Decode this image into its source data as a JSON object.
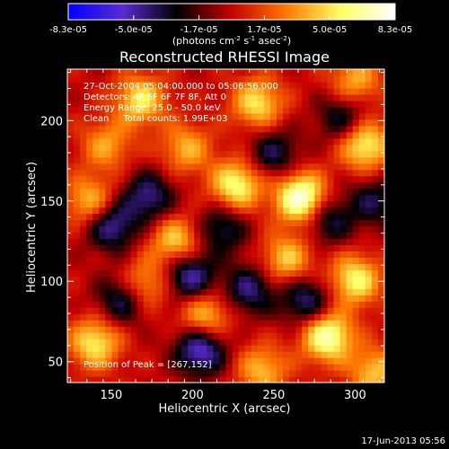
{
  "chart_data": {
    "type": "heatmap",
    "title": "Reconstructed RHESSI Image",
    "xlabel": "Heliocentric X (arcsec)",
    "ylabel": "Heliocentric Y (arcsec)",
    "xlim": [
      123,
      318
    ],
    "ylim": [
      37,
      232
    ],
    "x_ticks": [
      150,
      200,
      250,
      300
    ],
    "y_ticks": [
      50,
      100,
      150,
      200
    ],
    "colorbar": {
      "min": -8.3e-05,
      "max": 8.3e-05,
      "tick_labels": [
        "-8.3e-05",
        "-5.0e-05",
        "-1.7e-05",
        "1.7e-05",
        "5.0e-05",
        "8.3e-05"
      ],
      "unit_label": "(photons cm-2 s-1 asec-2)",
      "colors": [
        "#0000ff",
        "#5a2ad2",
        "#000000",
        "#c80000",
        "#ff7800",
        "#ffff64",
        "#ffffff"
      ]
    },
    "annotations": [
      "27-Oct-2004 05:04:00.000 to 05:06:56.000",
      "Detectors: 4F 5F 6F 7F 8F, Att 0",
      "Energy Range: 25.0 - 50.0 keV",
      "Clean     Total counts: 1.99E+03"
    ],
    "peak_label": "Position of Peak = [267,152]",
    "peak": {
      "x": 267,
      "y": 152
    },
    "hot_spots": [
      {
        "x": 267,
        "y": 152,
        "v": 8.3e-05
      },
      {
        "x": 227,
        "y": 160,
        "v": 6.2e-05
      },
      {
        "x": 283,
        "y": 66,
        "v": 7.2e-05
      },
      {
        "x": 306,
        "y": 185,
        "v": 6e-05
      },
      {
        "x": 300,
        "y": 101,
        "v": 5.8e-05
      },
      {
        "x": 140,
        "y": 62,
        "v": 5.5e-05
      },
      {
        "x": 168,
        "y": 213,
        "v": 5.2e-05
      },
      {
        "x": 190,
        "y": 125,
        "v": 5e-05
      },
      {
        "x": 240,
        "y": 211,
        "v": 5.2e-05
      },
      {
        "x": 208,
        "y": 78,
        "v": 4.8e-05
      },
      {
        "x": 137,
        "y": 150,
        "v": 4.5e-05
      },
      {
        "x": 170,
        "y": 98,
        "v": 4.3e-05
      },
      {
        "x": 258,
        "y": 114,
        "v": 4.6e-05
      },
      {
        "x": 196,
        "y": 183,
        "v": 3.9e-05
      },
      {
        "x": 243,
        "y": 45,
        "v": 4.2e-05
      },
      {
        "x": 312,
        "y": 44,
        "v": 4.4e-05
      },
      {
        "x": 300,
        "y": 225,
        "v": 4e-05
      },
      {
        "x": 147,
        "y": 185,
        "v": 3.6e-05
      }
    ],
    "cold_spots": [
      {
        "x": 150,
        "y": 135,
        "v": -5.2e-05
      },
      {
        "x": 198,
        "y": 104,
        "v": -5.5e-05
      },
      {
        "x": 205,
        "y": 58,
        "v": -6.2e-05
      },
      {
        "x": 173,
        "y": 153,
        "v": -4.6e-05
      },
      {
        "x": 235,
        "y": 95,
        "v": -4.4e-05
      },
      {
        "x": 283,
        "y": 139,
        "v": -4e-05
      },
      {
        "x": 250,
        "y": 180,
        "v": -3.8e-05
      },
      {
        "x": 157,
        "y": 89,
        "v": -4.5e-05
      },
      {
        "x": 270,
        "y": 88,
        "v": -4.6e-05
      },
      {
        "x": 218,
        "y": 133,
        "v": -3.9e-05
      },
      {
        "x": 292,
        "y": 202,
        "v": -3.7e-05
      },
      {
        "x": 312,
        "y": 150,
        "v": -3.5e-05
      }
    ],
    "grid": false
  },
  "footer": {
    "date": "17-Jun-2013 05:56"
  }
}
